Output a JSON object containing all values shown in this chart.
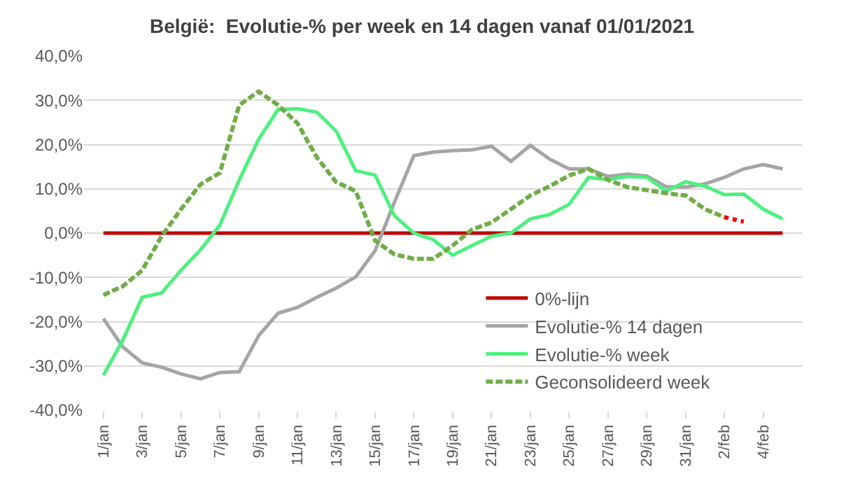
{
  "chart_data": {
    "type": "line",
    "title": "België:  Evolutie-% per week en 14 dagen vanaf 01/01/2021",
    "x": [
      "2021-01-01",
      "2021-01-02",
      "2021-01-03",
      "2021-01-04",
      "2021-01-05",
      "2021-01-06",
      "2021-01-07",
      "2021-01-08",
      "2021-01-09",
      "2021-01-10",
      "2021-01-11",
      "2021-01-12",
      "2021-01-13",
      "2021-01-14",
      "2021-01-15",
      "2021-01-16",
      "2021-01-17",
      "2021-01-18",
      "2021-01-19",
      "2021-01-20",
      "2021-01-21",
      "2021-01-22",
      "2021-01-23",
      "2021-01-24",
      "2021-01-25",
      "2021-01-26",
      "2021-01-27",
      "2021-01-28",
      "2021-01-29",
      "2021-01-30",
      "2021-01-31",
      "2021-02-01",
      "2021-02-02",
      "2021-02-03",
      "2021-02-04",
      "2021-02-05"
    ],
    "series": [
      {
        "name": "0%-lijn",
        "color": "#c00000",
        "values": [
          0,
          0,
          0,
          0,
          0,
          0,
          0,
          0,
          0,
          0,
          0,
          0,
          0,
          0,
          0,
          0,
          0,
          0,
          0,
          0,
          0,
          0,
          0,
          0,
          0,
          0,
          0,
          0,
          0,
          0,
          0,
          0,
          0,
          0,
          0,
          0
        ]
      },
      {
        "name": "Evolutie-% 14 dagen",
        "color": "#a5a5a5",
        "values": [
          -19.3,
          -25.7,
          -29.3,
          -30.3,
          -31.8,
          -32.9,
          -31.5,
          -31.3,
          -23.2,
          -18.1,
          -16.8,
          -14.5,
          -12.4,
          -9.9,
          -4,
          7,
          17.5,
          18.3,
          18.6,
          18.8,
          19.6,
          16.2,
          19.8,
          16.7,
          14.5,
          14.5,
          12.8,
          13.3,
          12.9,
          10.5,
          10.4,
          11.1,
          12.6,
          14.5,
          15.5,
          14.5
        ]
      },
      {
        "name": "Evolutie-% week",
        "color": "#4cf07f",
        "values": [
          -32.1,
          -24.2,
          -14.5,
          -13.5,
          -8.4,
          -3.8,
          1.8,
          12,
          21.2,
          27.9,
          28.1,
          27.3,
          23,
          14.1,
          13.1,
          3.9,
          0,
          -1.5,
          -5,
          -2.8,
          -0.7,
          0,
          3.2,
          4.2,
          6.5,
          12.6,
          12.1,
          12.8,
          12.6,
          9.5,
          11.6,
          10.6,
          8.7,
          8.8,
          5.4,
          3.2
        ]
      },
      {
        "name": "Geconsolideerd week",
        "color": "#70ad47",
        "line_style": "dashed",
        "values": [
          -14,
          -12,
          -8.4,
          -0.7,
          5.4,
          11,
          13.6,
          28.9,
          32,
          28.9,
          24.8,
          17.1,
          11.5,
          9.5,
          -1.7,
          -4.8,
          -5.8,
          -5.8,
          -2.8,
          0.8,
          2.4,
          5.4,
          8.5,
          10.6,
          13,
          14.5,
          12,
          10.4,
          9.7,
          9,
          8.5,
          5.4,
          3.6,
          null,
          null,
          null
        ]
      },
      {
        "color": "#ff0000",
        "line_style": "dotted",
        "values": [
          null,
          null,
          null,
          null,
          null,
          null,
          null,
          null,
          null,
          null,
          null,
          null,
          null,
          null,
          null,
          null,
          null,
          null,
          null,
          null,
          null,
          null,
          null,
          null,
          null,
          null,
          null,
          null,
          null,
          null,
          null,
          null,
          3.6,
          2.6,
          null,
          null
        ]
      }
    ],
    "xlim": [
      "2020-12-31T00:00",
      "2021-02-06T00:00"
    ],
    "xticks": [
      {
        "value": "2021-01-01",
        "label": "1/jan"
      },
      {
        "value": "2021-01-03",
        "label": "3/jan"
      },
      {
        "value": "2021-01-05",
        "label": "5/jan"
      },
      {
        "value": "2021-01-07",
        "label": "7/jan"
      },
      {
        "value": "2021-01-09",
        "label": "9/jan"
      },
      {
        "value": "2021-01-11",
        "label": "11/jan"
      },
      {
        "value": "2021-01-13",
        "label": "13/jan"
      },
      {
        "value": "2021-01-15",
        "label": "15/jan"
      },
      {
        "value": "2021-01-17",
        "label": "17/jan"
      },
      {
        "value": "2021-01-19",
        "label": "19/jan"
      },
      {
        "value": "2021-01-21",
        "label": "21/jan"
      },
      {
        "value": "2021-01-23",
        "label": "23/jan"
      },
      {
        "value": "2021-01-25",
        "label": "25/jan"
      },
      {
        "value": "2021-01-27",
        "label": "27/jan"
      },
      {
        "value": "2021-01-29",
        "label": "29/jan"
      },
      {
        "value": "2021-01-31",
        "label": "31/jan"
      },
      {
        "value": "2021-02-02",
        "label": "2/feb"
      },
      {
        "value": "2021-02-04",
        "label": "4/feb"
      }
    ],
    "ylim": [
      -40,
      40
    ],
    "yticks": [
      {
        "value": -40,
        "label": "-40,0%"
      },
      {
        "value": -30,
        "label": "-30,0%"
      },
      {
        "value": -20,
        "label": "-20,0%"
      },
      {
        "value": -10,
        "label": "-10,0%"
      },
      {
        "value": 0,
        "label": "0,0%"
      },
      {
        "value": 10,
        "label": "10,0%"
      },
      {
        "value": 20,
        "label": "20,0%"
      },
      {
        "value": 30,
        "label": "30,0%"
      },
      {
        "value": 40,
        "label": "40,0%"
      }
    ],
    "grid": "y",
    "legend": "bottom right",
    "marker": "none"
  }
}
